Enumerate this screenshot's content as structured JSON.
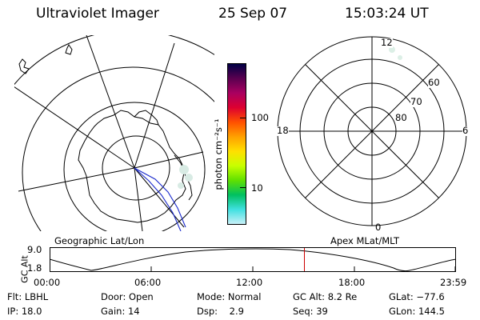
{
  "header": {
    "instrument": "Ultraviolet Imager",
    "date": "25 Sep 07",
    "time": "15:03:24 UT"
  },
  "colorbar": {
    "unit_label": "photon cm⁻²s⁻¹",
    "ticks": [
      "100",
      "10"
    ],
    "colors": [
      "#000044",
      "#5a0050",
      "#aa0060",
      "#dd0030",
      "#ff5000",
      "#ffa000",
      "#ffe000",
      "#c8ff00",
      "#60e000",
      "#00c060",
      "#40e0e0",
      "#c8f0f8"
    ]
  },
  "geo_panel": {
    "label": "Geographic Lat/Lon"
  },
  "apex_panel": {
    "label": "Apex MLat/MLT",
    "mlt_labels": {
      "top": "12",
      "bottom": "0",
      "left": "18",
      "right": "6"
    },
    "lat_labels": [
      "60",
      "70",
      "80"
    ]
  },
  "altitude_plot": {
    "ylabel": "GC Alt",
    "yticks": [
      "9.0",
      "1.8"
    ],
    "xticks": [
      "00:00",
      "06:00",
      "12:00",
      "18:00",
      "23:59"
    ],
    "current_time_fraction": 0.627,
    "marker_color": "#cc0000"
  },
  "info": {
    "row1": [
      {
        "label": "Flt:",
        "value": "LBHL"
      },
      {
        "label": "Door:",
        "value": "Open"
      },
      {
        "label": "Mode:",
        "value": "Normal"
      },
      {
        "label": "GC Alt:",
        "value": "8.2 Re"
      },
      {
        "label": "GLat:",
        "value": "−77.6"
      }
    ],
    "row2": [
      {
        "label": "IP:",
        "value": "18.0"
      },
      {
        "label": "Gain:",
        "value": "14"
      },
      {
        "label": "Dsp:",
        "value": "2.9"
      },
      {
        "label": "Seq:",
        "value": "39"
      },
      {
        "label": "GLon:",
        "value": "144.5"
      }
    ]
  }
}
